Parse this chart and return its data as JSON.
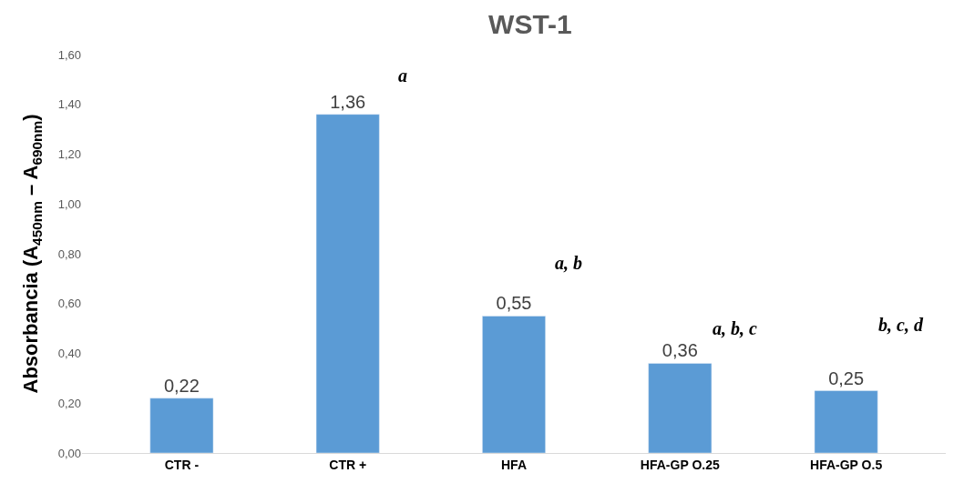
{
  "chart_data": {
    "type": "bar",
    "title": "WST-1",
    "ylabel": "Absorbancia (A$_{450nm}$ – A$_{690nm}$)",
    "categories": [
      "CTR -",
      "CTR +",
      "HFA",
      "HFA-GP O.25",
      "HFA-GP O.5"
    ],
    "values": [
      0.22,
      1.36,
      0.55,
      0.36,
      0.25
    ],
    "color": "#5b9bd5",
    "value_labels": [
      "0,22",
      "1,36",
      "0,55",
      "0,36",
      "0,25"
    ],
    "ylim": [
      0,
      1.6
    ],
    "yticks": [
      {
        "value": 0,
        "label": "0,00"
      },
      {
        "value": 0.2,
        "label": "0,20"
      },
      {
        "value": 0.4,
        "label": "0,40"
      },
      {
        "value": 0.6,
        "label": "0,60"
      },
      {
        "value": 0.8,
        "label": "0,80"
      },
      {
        "value": 1.0,
        "label": "1,00"
      },
      {
        "value": 1.2,
        "label": "1,20"
      },
      {
        "value": 1.4,
        "label": "1,40"
      },
      {
        "value": 1.6,
        "label": "1,60"
      }
    ],
    "annotations": [
      "a",
      "a, b",
      "a, b, c",
      "b, c, d"
    ]
  }
}
